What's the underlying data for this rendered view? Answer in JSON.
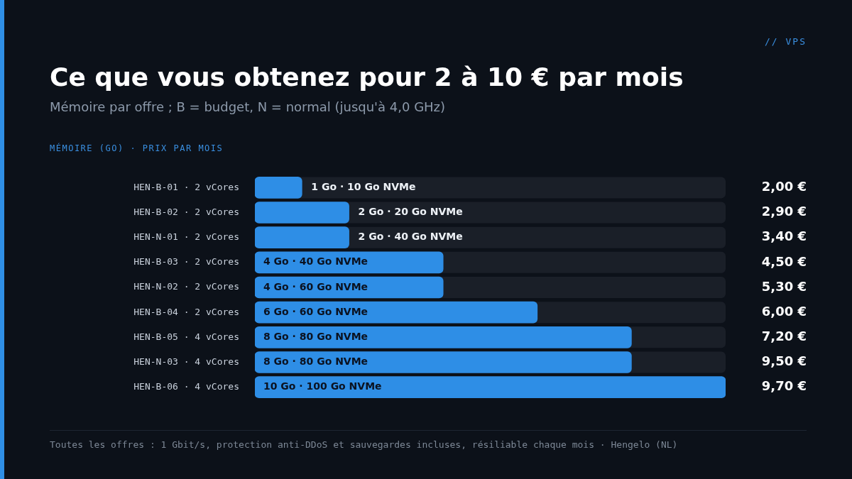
{
  "chart_data": {
    "type": "bar",
    "orientation": "horizontal",
    "title": "Ce que vous obtenez pour 2 à 10 € par mois",
    "subtitle": "Mémoire par offre ; B = budget, N = normal (jusqu'à 4,0 GHz)",
    "xlabel": "MÉMOIRE (GO) · PRIX PAR MOIS",
    "categories": [
      "HEN-B-01 · 2 vCores",
      "HEN-B-02 · 2 vCores",
      "HEN-N-01 · 2 vCores",
      "HEN-B-03 · 2 vCores",
      "HEN-N-02 · 2 vCores",
      "HEN-B-04 · 2 vCores",
      "HEN-B-05 · 4 vCores",
      "HEN-N-03 · 4 vCores",
      "HEN-B-06 · 4 vCores"
    ],
    "values": [
      1,
      2,
      2,
      4,
      4,
      6,
      8,
      8,
      10
    ],
    "value_labels": [
      "1 Go · 10 Go NVMe",
      "2 Go · 20 Go NVMe",
      "2 Go · 40 Go NVMe",
      "4 Go · 40 Go NVMe",
      "4 Go · 60 Go NVMe",
      "6 Go · 60 Go NVMe",
      "8 Go · 80 Go NVMe",
      "8 Go · 80 Go NVMe",
      "10 Go · 100 Go NVMe"
    ],
    "color": "#2e8ee6",
    "xlim": [
      0,
      10
    ],
    "tick_labels": "y",
    "annotations": [
      "// VPS",
      "2,00 €",
      "2,90 €",
      "3,40 €",
      "4,50 €",
      "5,30 €",
      "6,00 €",
      "7,20 €",
      "9,50 €",
      "9,70 €",
      "Toutes les offres : 1 Gbit/s, protection anti-DDoS et sauvegardes incluses, résiliable chaque mois · Hengelo (NL)"
    ]
  }
}
